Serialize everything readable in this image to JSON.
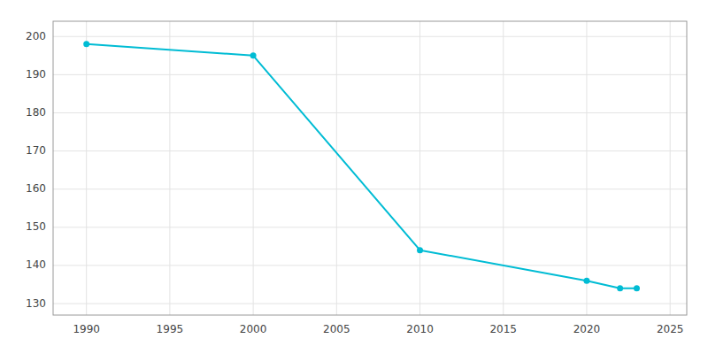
{
  "chart_data": {
    "type": "line",
    "x": [
      1990,
      2000,
      2010,
      2020,
      2022,
      2023
    ],
    "values": [
      198,
      195,
      144,
      136,
      134,
      134
    ],
    "color": "#00BCD4",
    "marker": "circle",
    "xlim": [
      1988,
      2026
    ],
    "ylim": [
      127,
      204
    ],
    "xticks": [
      1990,
      1995,
      2000,
      2005,
      2010,
      2015,
      2020,
      2025
    ],
    "yticks": [
      130,
      140,
      150,
      160,
      170,
      180,
      190,
      200
    ],
    "grid": true
  }
}
